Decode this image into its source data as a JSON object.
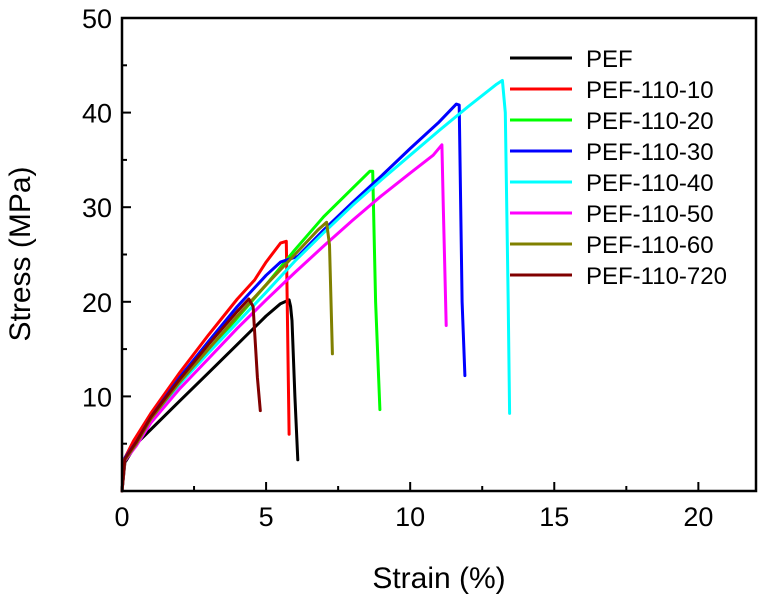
{
  "chart_data": {
    "type": "line",
    "title": "",
    "xlabel": "Strain (%)",
    "ylabel": "Stress (MPa)",
    "xlim": [
      0,
      22
    ],
    "ylim": [
      0,
      50
    ],
    "xticks": [
      0,
      5,
      10,
      15,
      20
    ],
    "yticks": [
      10,
      20,
      30,
      40,
      50
    ],
    "grid": false,
    "legend_position": "top-right",
    "series": [
      {
        "name": "PEF",
        "color": "#000000",
        "points": [
          [
            0,
            0
          ],
          [
            0.1,
            3
          ],
          [
            0.5,
            5
          ],
          [
            1,
            6.5
          ],
          [
            2,
            9.5
          ],
          [
            3,
            12.5
          ],
          [
            4,
            15.5
          ],
          [
            5,
            18.5
          ],
          [
            5.5,
            19.8
          ],
          [
            5.8,
            20.2
          ],
          [
            5.85,
            19.5
          ],
          [
            5.9,
            18
          ],
          [
            6.0,
            10
          ],
          [
            6.1,
            3.3
          ]
        ]
      },
      {
        "name": "PEF-110-10",
        "color": "#ff0000",
        "points": [
          [
            0,
            0
          ],
          [
            0.1,
            3.5
          ],
          [
            0.4,
            5.3
          ],
          [
            1,
            8.2
          ],
          [
            2,
            12.5
          ],
          [
            3,
            16.5
          ],
          [
            4,
            20.3
          ],
          [
            4.6,
            22.3
          ],
          [
            5.0,
            24.2
          ],
          [
            5.5,
            26.2
          ],
          [
            5.7,
            26.4
          ],
          [
            5.72,
            23
          ],
          [
            5.8,
            6
          ]
        ]
      },
      {
        "name": "PEF-110-20",
        "color": "#00ff00",
        "points": [
          [
            0,
            0
          ],
          [
            0.1,
            3.3
          ],
          [
            0.5,
            5
          ],
          [
            1,
            7.5
          ],
          [
            2,
            11.3
          ],
          [
            3,
            14.8
          ],
          [
            4,
            18.3
          ],
          [
            5,
            21.8
          ],
          [
            6,
            25.5
          ],
          [
            7,
            29
          ],
          [
            8,
            32
          ],
          [
            8.6,
            33.8
          ],
          [
            8.7,
            33.8
          ],
          [
            8.8,
            20
          ],
          [
            8.95,
            8.6
          ]
        ]
      },
      {
        "name": "PEF-110-30",
        "color": "#0000ff",
        "points": [
          [
            0,
            0
          ],
          [
            0.1,
            3.5
          ],
          [
            0.5,
            5.2
          ],
          [
            1,
            7.8
          ],
          [
            2,
            12
          ],
          [
            3,
            15.8
          ],
          [
            4,
            19.5
          ],
          [
            5,
            22.8
          ],
          [
            5.5,
            24.2
          ],
          [
            5.8,
            24.5
          ],
          [
            6.1,
            24.8
          ],
          [
            7,
            27.6
          ],
          [
            8,
            30.5
          ],
          [
            9,
            33.3
          ],
          [
            10,
            36.2
          ],
          [
            11,
            39
          ],
          [
            11.6,
            40.9
          ],
          [
            11.7,
            40.8
          ],
          [
            11.8,
            20
          ],
          [
            11.9,
            12.2
          ]
        ]
      },
      {
        "name": "PEF-110-40",
        "color": "#00ffff",
        "points": [
          [
            0,
            0
          ],
          [
            0.1,
            3.3
          ],
          [
            0.5,
            5
          ],
          [
            1,
            7.5
          ],
          [
            2,
            11.3
          ],
          [
            3,
            14.6
          ],
          [
            4,
            17.8
          ],
          [
            5,
            21
          ],
          [
            6,
            24.3
          ],
          [
            7,
            27.3
          ],
          [
            8,
            30.2
          ],
          [
            9,
            32.9
          ],
          [
            10,
            35.5
          ],
          [
            11,
            38.1
          ],
          [
            12,
            40.6
          ],
          [
            13,
            43
          ],
          [
            13.2,
            43.4
          ],
          [
            13.3,
            40
          ],
          [
            13.4,
            20
          ],
          [
            13.45,
            8.2
          ]
        ]
      },
      {
        "name": "PEF-110-50",
        "color": "#ff00ff",
        "points": [
          [
            0,
            0
          ],
          [
            0.1,
            3.2
          ],
          [
            0.5,
            4.8
          ],
          [
            1,
            7.2
          ],
          [
            2,
            10.8
          ],
          [
            3,
            14
          ],
          [
            4,
            17.2
          ],
          [
            5,
            20.2
          ],
          [
            6,
            23.1
          ],
          [
            7,
            25.9
          ],
          [
            8,
            28.6
          ],
          [
            9,
            31.2
          ],
          [
            10,
            33.6
          ],
          [
            10.8,
            35.5
          ],
          [
            11.1,
            36.6
          ],
          [
            11.15,
            30
          ],
          [
            11.25,
            17.5
          ]
        ]
      },
      {
        "name": "PEF-110-60",
        "color": "#808000",
        "points": [
          [
            0,
            0
          ],
          [
            0.1,
            3.3
          ],
          [
            0.5,
            5
          ],
          [
            1,
            7.6
          ],
          [
            2,
            11.5
          ],
          [
            3,
            15
          ],
          [
            4,
            18.5
          ],
          [
            5,
            21.8
          ],
          [
            6,
            25
          ],
          [
            6.8,
            27.6
          ],
          [
            7.1,
            28.4
          ],
          [
            7.2,
            26
          ],
          [
            7.3,
            14.5
          ]
        ]
      },
      {
        "name": "PEF-110-720",
        "color": "#800000",
        "points": [
          [
            0,
            0
          ],
          [
            0.1,
            3.4
          ],
          [
            0.5,
            5.2
          ],
          [
            1,
            7.8
          ],
          [
            2,
            11.8
          ],
          [
            3,
            15.5
          ],
          [
            4,
            19
          ],
          [
            4.4,
            20.3
          ],
          [
            4.55,
            19.5
          ],
          [
            4.7,
            12
          ],
          [
            4.8,
            8.5
          ]
        ]
      }
    ]
  }
}
